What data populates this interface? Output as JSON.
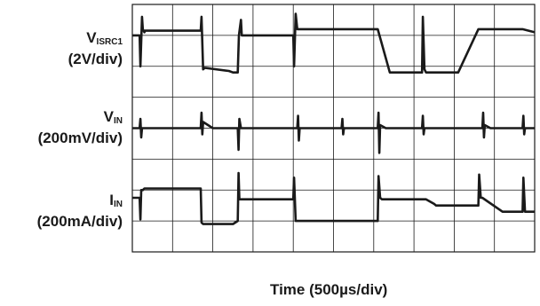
{
  "chart_data": {
    "type": "line",
    "title": "",
    "xlabel": "Time (500µs/div)",
    "grid": true,
    "x_divisions": 10,
    "y_divisions": 8,
    "x_unit": "div",
    "y_unit": "div",
    "xlim": [
      0,
      10
    ],
    "ylim": [
      0,
      8
    ],
    "colors": {
      "trace": "#1a1a1a",
      "grid": "#1a1a1a",
      "background": "#ffffff"
    },
    "series": [
      {
        "name": "VISRC1",
        "name_main": "V",
        "name_sub": "ISRC1",
        "scale": "(2V/div)",
        "x": [
          0,
          0.18,
          0.2,
          0.24,
          0.26,
          0.3,
          0.32,
          0.5,
          1.5,
          1.7,
          1.72,
          1.76,
          1.8,
          2.4,
          2.5,
          2.62,
          2.65,
          2.7,
          2.72,
          3.5,
          3.9,
          4.0,
          4.02,
          4.06,
          4.1,
          4.2,
          4.22,
          4.26,
          4.3,
          5.0,
          6.1,
          6.4,
          7.1,
          7.2,
          7.22,
          7.26,
          7.3,
          7.5,
          8.1,
          8.6,
          8.62,
          8.66,
          8.7,
          9.7,
          10
        ],
        "values": [
          7.0,
          7.0,
          6.0,
          7.6,
          7.2,
          7.1,
          7.15,
          7.15,
          7.15,
          7.15,
          7.6,
          5.9,
          5.95,
          5.85,
          5.8,
          5.8,
          7.0,
          7.5,
          7.0,
          7.0,
          7.0,
          7.0,
          6.0,
          7.7,
          7.2,
          7.2,
          7.2,
          7.2,
          7.2,
          7.2,
          7.2,
          5.8,
          5.8,
          5.8,
          7.6,
          5.9,
          5.8,
          5.8,
          5.8,
          7.2,
          7.2,
          7.2,
          7.2,
          7.2,
          7.1
        ]
      },
      {
        "name": "VIN",
        "name_main": "V",
        "name_sub": "IN",
        "scale": "(200mV/div)",
        "x": [
          0,
          0.18,
          0.2,
          0.22,
          0.24,
          0.3,
          1.4,
          1.7,
          1.72,
          1.74,
          1.76,
          2.0,
          2.3,
          2.62,
          2.64,
          2.66,
          2.7,
          4.1,
          4.12,
          4.14,
          4.16,
          4.3,
          5.0,
          5.2,
          5.22,
          5.24,
          5.26,
          5.4,
          6.0,
          6.1,
          6.12,
          6.14,
          6.16,
          6.3,
          7.0,
          7.2,
          7.22,
          7.24,
          7.26,
          7.4,
          8.7,
          8.72,
          8.74,
          8.76,
          8.9,
          9.7,
          9.72,
          9.74,
          9.76,
          10
        ],
        "values": [
          4.0,
          4.0,
          4.3,
          3.7,
          4.0,
          4.0,
          4.0,
          4.0,
          4.5,
          3.8,
          4.2,
          4.0,
          4.0,
          4.0,
          3.3,
          4.3,
          4.0,
          4.0,
          4.4,
          3.6,
          4.0,
          4.0,
          4.0,
          4.0,
          4.3,
          3.8,
          4.0,
          4.0,
          4.0,
          4.0,
          4.5,
          3.2,
          4.1,
          4.0,
          4.0,
          4.0,
          4.4,
          3.8,
          4.0,
          4.0,
          4.0,
          4.5,
          3.7,
          4.1,
          4.0,
          4.0,
          4.4,
          3.8,
          4.0,
          4.0
        ]
      },
      {
        "name": "IIN",
        "name_main": "I",
        "name_sub": "IN",
        "scale": "(200mA/div)",
        "x": [
          0,
          0.18,
          0.2,
          0.22,
          0.26,
          0.3,
          0.32,
          1.5,
          1.7,
          1.72,
          1.76,
          2.0,
          2.5,
          2.62,
          2.64,
          2.66,
          2.7,
          4.0,
          4.02,
          4.06,
          4.1,
          4.2,
          5.0,
          6.1,
          6.12,
          6.16,
          6.2,
          7.2,
          7.3,
          7.5,
          7.55,
          8.1,
          8.6,
          8.62,
          8.66,
          8.7,
          9.2,
          9.7,
          9.72,
          9.76,
          9.8,
          10
        ],
        "values": [
          1.75,
          1.75,
          1.05,
          2.0,
          2.0,
          2.05,
          2.05,
          2.05,
          2.05,
          0.95,
          0.9,
          0.9,
          0.9,
          1.0,
          2.55,
          1.7,
          1.7,
          1.7,
          2.4,
          1.0,
          1.0,
          1.0,
          1.0,
          1.0,
          2.45,
          1.75,
          1.7,
          1.7,
          1.7,
          1.55,
          1.5,
          1.5,
          1.5,
          2.5,
          1.75,
          1.75,
          1.3,
          1.3,
          2.4,
          1.3,
          1.3,
          1.3
        ]
      }
    ]
  }
}
